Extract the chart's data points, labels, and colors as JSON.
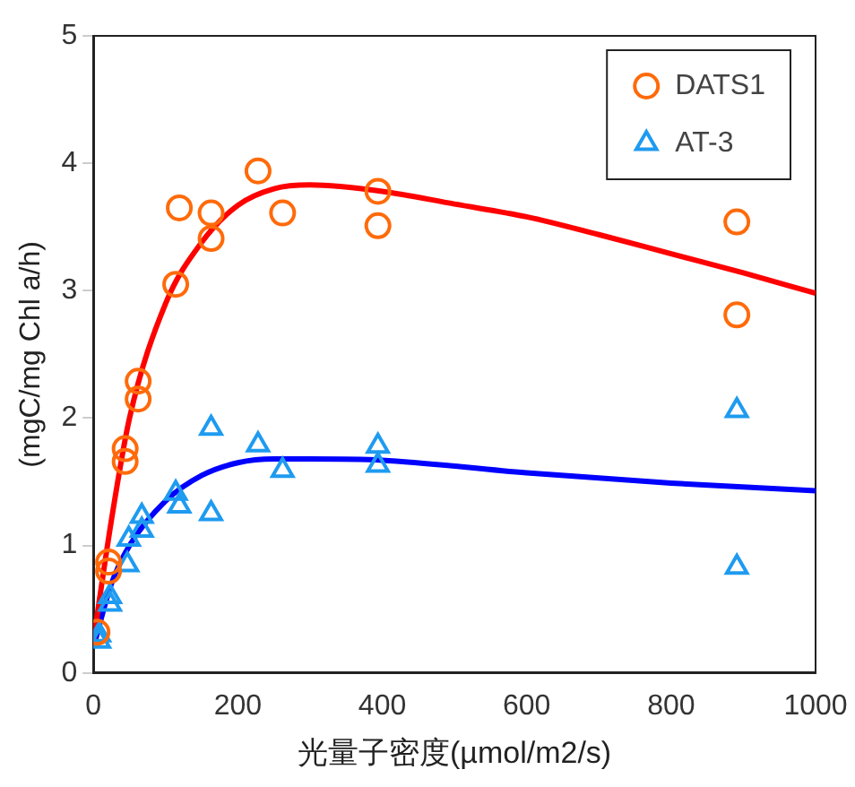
{
  "chart_data": {
    "type": "scatter",
    "xlabel": "光量子密度(µmol/m2/s)",
    "ylabel": "(mgC/mg Chl a/h)",
    "xlim": [
      0,
      1000
    ],
    "xticks": [
      0,
      200,
      400,
      600,
      800,
      1000
    ],
    "ylim": [
      0,
      5
    ],
    "yticks": [
      0,
      1,
      2,
      3,
      4,
      5
    ],
    "grid": false,
    "legend": "top right",
    "series": [
      {
        "name": "DATS1",
        "marker": "circle",
        "color": "#ff6a0a",
        "x": [
          5,
          21,
          21,
          44,
          44,
          62,
          62,
          114,
          119,
          163,
          163,
          228,
          262,
          394,
          394,
          891,
          891
        ],
        "values": [
          0.32,
          0.87,
          0.8,
          1.76,
          1.66,
          2.29,
          2.15,
          3.05,
          3.65,
          3.61,
          3.41,
          3.94,
          3.61,
          3.78,
          3.51,
          3.54,
          2.81
        ]
      },
      {
        "name": "AT-3",
        "marker": "triangle",
        "color": "#1e9bf0",
        "x": [
          8,
          8,
          23,
          23,
          47,
          49,
          67,
          67,
          114,
          119,
          163,
          163,
          228,
          262,
          394,
          394,
          891,
          891
        ],
        "values": [
          0.3,
          0.25,
          0.6,
          0.54,
          0.85,
          1.05,
          1.23,
          1.12,
          1.41,
          1.31,
          1.92,
          1.25,
          1.79,
          1.59,
          1.78,
          1.63,
          2.06,
          0.83
        ]
      },
      {
        "type": "line",
        "marker": "none",
        "line_style": "solid",
        "color": "#ff0000",
        "x": [
          0,
          25,
          50,
          100,
          150,
          200,
          250,
          300,
          400,
          500,
          600,
          700,
          800,
          900,
          1000
        ],
        "values": [
          0.25,
          1.2,
          2.0,
          2.9,
          3.38,
          3.67,
          3.8,
          3.83,
          3.78,
          3.68,
          3.58,
          3.44,
          3.29,
          3.14,
          2.98
        ]
      },
      {
        "type": "line",
        "marker": "none",
        "line_style": "solid",
        "color": "#0000ff",
        "x": [
          0,
          25,
          50,
          100,
          150,
          200,
          250,
          300,
          400,
          600,
          800,
          1000
        ],
        "values": [
          0.2,
          0.7,
          1.0,
          1.35,
          1.55,
          1.65,
          1.68,
          1.68,
          1.67,
          1.57,
          1.49,
          1.43
        ]
      }
    ]
  }
}
